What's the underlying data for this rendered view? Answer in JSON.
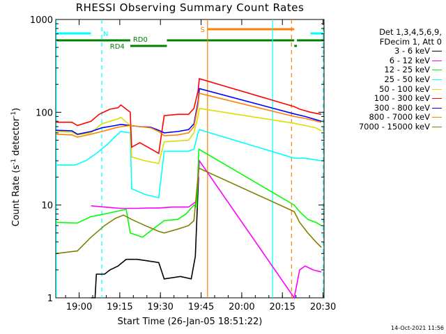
{
  "chart_data": {
    "type": "line",
    "title": "RHESSI Observing Summary Count Rates",
    "xlabel": "Start Time (26-Jan-05 18:51:22)",
    "ylabel": "Count Rate (s",
    "ylabel_sup": "-1",
    "ylabel_tail": " detector",
    "ylabel_close": ")",
    "xlim": [
      0,
      99
    ],
    "ylim": [
      1,
      1000
    ],
    "yscale": "log",
    "x_ticks": [
      {
        "x": 8.63,
        "label": "19:00"
      },
      {
        "x": 23.63,
        "label": "19:15"
      },
      {
        "x": 38.63,
        "label": "19:30"
      },
      {
        "x": 53.63,
        "label": "19:45"
      },
      {
        "x": 68.63,
        "label": "20:00"
      },
      {
        "x": 83.63,
        "label": "20:15"
      },
      {
        "x": 98.63,
        "label": "20:30"
      }
    ],
    "y_ticks": [
      {
        "y": 1,
        "label": "1"
      },
      {
        "y": 10,
        "label": "10"
      },
      {
        "y": 100,
        "label": "100"
      },
      {
        "y": 1000,
        "label": "1000"
      }
    ],
    "legend_header": [
      "Det 1,3,4,5,6,9,",
      "FDecim 1, Att 0"
    ],
    "series": [
      {
        "name": "3 - 6 keV",
        "color": "#000000",
        "points": [
          [
            13,
            1.0
          ],
          [
            14.5,
            1.0
          ],
          [
            15,
            1.8
          ],
          [
            18,
            1.8
          ],
          [
            20,
            2.0
          ],
          [
            23,
            2.2
          ],
          [
            26,
            2.6
          ],
          [
            30,
            2.6
          ],
          [
            34,
            2.5
          ],
          [
            38,
            2.4
          ],
          [
            40,
            1.6
          ],
          [
            46,
            1.7
          ],
          [
            50,
            1.6
          ],
          [
            51.5,
            2.8
          ],
          [
            52.7,
            20
          ]
        ]
      },
      {
        "name": "6 - 12 keV",
        "color": "#ff00ff",
        "points": [
          [
            13,
            9.8
          ],
          [
            18,
            9.5
          ],
          [
            24,
            9.2
          ],
          [
            30,
            9.2
          ],
          [
            34,
            9.3
          ],
          [
            38,
            9.3
          ],
          [
            43,
            9.5
          ],
          [
            49,
            9.5
          ],
          [
            52,
            11
          ],
          [
            53,
            30
          ],
          [
            88,
            1.0
          ],
          [
            90,
            2.0
          ],
          [
            92,
            2.2
          ],
          [
            95,
            2.0
          ],
          [
            98,
            1.9
          ]
        ]
      },
      {
        "name": "12 - 25 keV",
        "color": "#00ff00",
        "points": [
          [
            0,
            6.5
          ],
          [
            8,
            6.4
          ],
          [
            13,
            7.5
          ],
          [
            18,
            8.0
          ],
          [
            22,
            8.5
          ],
          [
            26,
            9.0
          ],
          [
            27.5,
            5.0
          ],
          [
            32,
            4.5
          ],
          [
            40,
            6.8
          ],
          [
            45,
            7.0
          ],
          [
            48,
            8.0
          ],
          [
            51,
            10
          ],
          [
            52,
            9.5
          ],
          [
            52.8,
            40
          ],
          [
            88,
            10
          ],
          [
            90,
            8.5
          ],
          [
            93,
            7.0
          ],
          [
            96,
            6.5
          ],
          [
            98,
            6.0
          ]
        ]
      },
      {
        "name": "25 - 50 keV",
        "color": "#00ffff",
        "points": [
          [
            0,
            27
          ],
          [
            7,
            27
          ],
          [
            11,
            30
          ],
          [
            15,
            36
          ],
          [
            19,
            45
          ],
          [
            22,
            55
          ],
          [
            24,
            62
          ],
          [
            27.5,
            60
          ],
          [
            28,
            15
          ],
          [
            33,
            13
          ],
          [
            38,
            12
          ],
          [
            40,
            38
          ],
          [
            45,
            38
          ],
          [
            49,
            38
          ],
          [
            51,
            40
          ],
          [
            52.5,
            60
          ],
          [
            53,
            65
          ],
          [
            88,
            32
          ],
          [
            92,
            32
          ],
          [
            98,
            30
          ]
        ]
      },
      {
        "name": "50 - 100 keV",
        "color": "#dddd00",
        "points": [
          [
            0,
            62
          ],
          [
            6,
            61
          ],
          [
            8,
            57
          ],
          [
            13,
            60
          ],
          [
            17,
            75
          ],
          [
            20,
            80
          ],
          [
            23,
            85
          ],
          [
            24,
            88
          ],
          [
            27.5,
            72
          ],
          [
            28,
            33
          ],
          [
            33,
            30
          ],
          [
            38,
            28
          ],
          [
            40,
            48
          ],
          [
            45,
            49
          ],
          [
            49,
            50
          ],
          [
            51,
            60
          ],
          [
            52.5,
            90
          ],
          [
            53,
            110
          ],
          [
            88,
            76
          ],
          [
            92,
            72
          ],
          [
            96,
            68
          ],
          [
            98,
            63
          ]
        ]
      },
      {
        "name": "100 - 300 keV",
        "color": "#ff0000",
        "points": [
          [
            0,
            78
          ],
          [
            6,
            78
          ],
          [
            8,
            72
          ],
          [
            13,
            80
          ],
          [
            16,
            95
          ],
          [
            20,
            108
          ],
          [
            23,
            112
          ],
          [
            24,
            120
          ],
          [
            27.5,
            100
          ],
          [
            28,
            42
          ],
          [
            31,
            47
          ],
          [
            34,
            42
          ],
          [
            38,
            36
          ],
          [
            40,
            92
          ],
          [
            45,
            95
          ],
          [
            49,
            95
          ],
          [
            51,
            110
          ],
          [
            52.5,
            170
          ],
          [
            53,
            230
          ],
          [
            88,
            115
          ],
          [
            90,
            108
          ],
          [
            94,
            100
          ],
          [
            98,
            95
          ]
        ]
      },
      {
        "name": "300 - 800 keV",
        "color": "#0000ff",
        "points": [
          [
            0,
            64
          ],
          [
            6,
            63
          ],
          [
            8,
            58
          ],
          [
            13,
            62
          ],
          [
            17,
            68
          ],
          [
            22,
            72
          ],
          [
            24,
            74
          ],
          [
            27.5,
            72
          ],
          [
            31,
            70
          ],
          [
            35,
            69
          ],
          [
            38,
            64
          ],
          [
            40,
            60
          ],
          [
            45,
            62
          ],
          [
            49,
            65
          ],
          [
            51,
            75
          ],
          [
            52.5,
            130
          ],
          [
            53,
            180
          ],
          [
            88,
            96
          ],
          [
            92,
            90
          ],
          [
            98,
            80
          ]
        ]
      },
      {
        "name": "800 - 7000 keV",
        "color": "#ff8000",
        "points": [
          [
            0,
            58
          ],
          [
            6,
            57
          ],
          [
            8,
            54
          ],
          [
            13,
            58
          ],
          [
            17,
            62
          ],
          [
            22,
            68
          ],
          [
            24,
            70
          ],
          [
            27.5,
            72
          ],
          [
            31,
            70
          ],
          [
            35,
            68
          ],
          [
            38,
            62
          ],
          [
            40,
            56
          ],
          [
            45,
            57
          ],
          [
            49,
            60
          ],
          [
            51,
            70
          ],
          [
            52.5,
            120
          ],
          [
            53,
            160
          ],
          [
            88,
            90
          ],
          [
            92,
            86
          ],
          [
            98,
            78
          ]
        ]
      },
      {
        "name": "7000 - 15000 keV",
        "color": "#808000",
        "points": [
          [
            0,
            3.0
          ],
          [
            8,
            3.2
          ],
          [
            13,
            4.5
          ],
          [
            18,
            6.0
          ],
          [
            22,
            7.2
          ],
          [
            25,
            7.8
          ],
          [
            28,
            7.0
          ],
          [
            33,
            6.0
          ],
          [
            38,
            5.2
          ],
          [
            40,
            5.0
          ],
          [
            45,
            5.5
          ],
          [
            49,
            6.0
          ],
          [
            51,
            6.8
          ],
          [
            52.8,
            25
          ],
          [
            88,
            8.5
          ],
          [
            90,
            6.5
          ],
          [
            93,
            5.0
          ],
          [
            96,
            4.0
          ],
          [
            98,
            3.5
          ]
        ]
      }
    ],
    "annotations": {
      "saa_label": "S",
      "night_label": "N",
      "rd0_label": "RD0",
      "rd4_label": "RD4"
    },
    "stamp": "14-Oct-2021 11:56"
  }
}
